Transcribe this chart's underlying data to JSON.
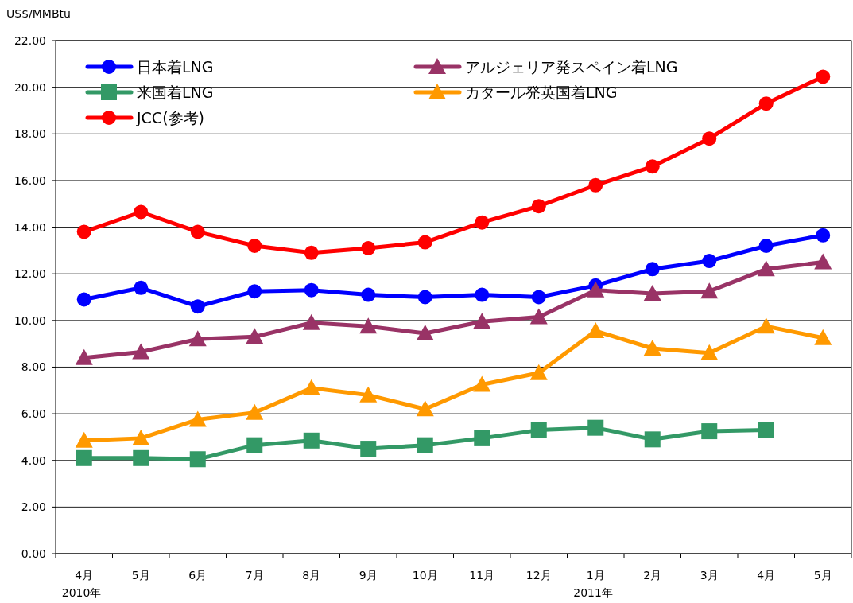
{
  "chart_data": {
    "type": "line",
    "ylabel": "US$/MMBtu",
    "categories": [
      "4月\n2010年",
      "5月",
      "6月",
      "7月",
      "8月",
      "9月",
      "10月",
      "11月",
      "12月",
      "1月\n2011年",
      "2月",
      "3月",
      "4月",
      "5月"
    ],
    "series": [
      {
        "name": "日本着LNG",
        "color": "#0000ff",
        "marker": "circle",
        "values": [
          10.9,
          11.4,
          10.6,
          11.25,
          11.3,
          11.1,
          11.0,
          11.1,
          11.0,
          11.5,
          12.2,
          12.55,
          13.2,
          13.65
        ]
      },
      {
        "name": "米国着LNG",
        "color": "#339966",
        "marker": "square",
        "values": [
          4.1,
          4.1,
          4.05,
          4.65,
          4.85,
          4.5,
          4.65,
          4.95,
          5.3,
          5.4,
          4.9,
          5.25,
          5.3,
          null
        ]
      },
      {
        "name": "JCC(参考)",
        "color": "#ff0000",
        "marker": "circle",
        "values": [
          13.8,
          14.65,
          13.8,
          13.2,
          12.9,
          13.1,
          13.35,
          14.2,
          14.9,
          15.8,
          16.6,
          17.8,
          19.3,
          20.45
        ]
      },
      {
        "name": "アルジェリア発スペイン着LNG",
        "color": "#993366",
        "marker": "triangle",
        "values": [
          8.4,
          8.65,
          9.2,
          9.3,
          9.9,
          9.75,
          9.45,
          9.95,
          10.15,
          11.3,
          11.15,
          11.25,
          12.2,
          12.5
        ]
      },
      {
        "name": "カタール発英国着LNG",
        "color": "#ff9900",
        "marker": "triangle",
        "values": [
          4.85,
          4.95,
          5.75,
          6.05,
          7.1,
          6.8,
          6.2,
          7.25,
          7.75,
          9.55,
          8.8,
          8.6,
          9.75,
          9.25
        ]
      }
    ],
    "ylim": [
      0,
      22
    ],
    "yticks": [
      {
        "value": 0,
        "label": "0.00"
      },
      {
        "value": 2,
        "label": "2.00"
      },
      {
        "value": 4,
        "label": "4.00"
      },
      {
        "value": 6,
        "label": "6.00"
      },
      {
        "value": 8,
        "label": "8.00"
      },
      {
        "value": 10,
        "label": "10.00"
      },
      {
        "value": 12,
        "label": "12.00"
      },
      {
        "value": 14,
        "label": "14.00"
      },
      {
        "value": 16,
        "label": "16.00"
      },
      {
        "value": 18,
        "label": "18.00"
      },
      {
        "value": 20,
        "label": "20.00"
      },
      {
        "value": 22,
        "label": "22.00"
      }
    ],
    "grid": "y",
    "legend": "top left"
  }
}
